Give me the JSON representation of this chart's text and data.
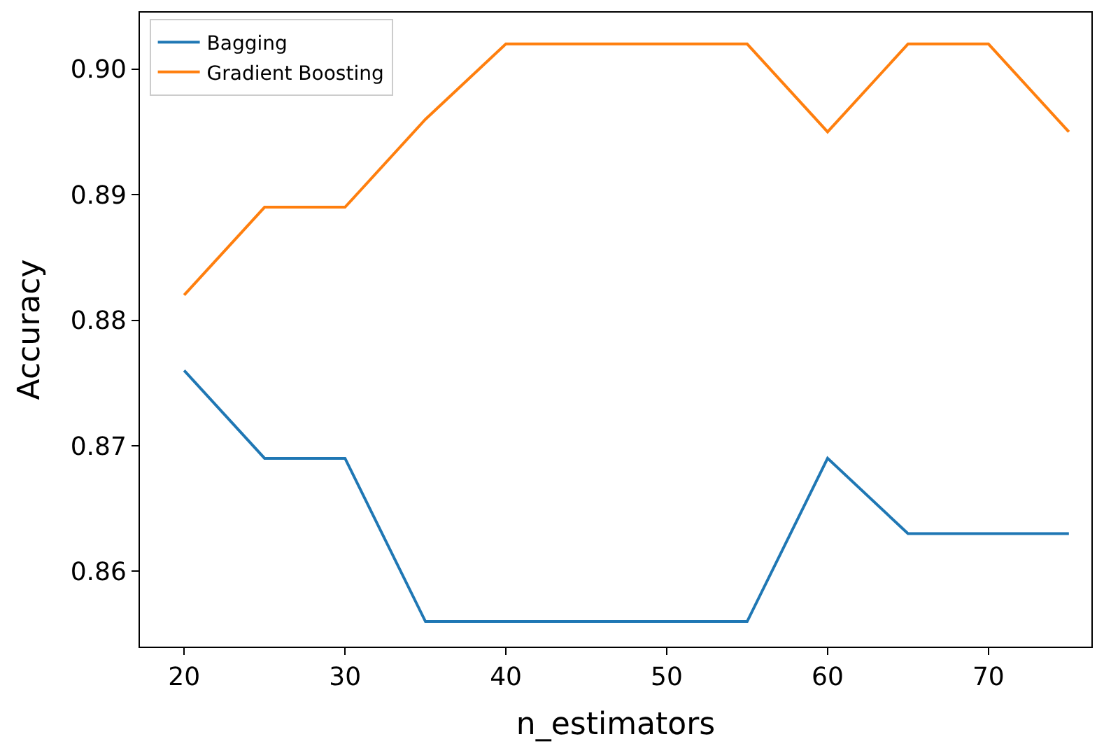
{
  "chart_data": {
    "type": "line",
    "xlabel": "n_estimators",
    "ylabel": "Accuracy",
    "x": [
      20,
      25,
      30,
      35,
      40,
      45,
      50,
      55,
      60,
      65,
      70,
      75
    ],
    "series": [
      {
        "name": "Bagging",
        "color": "#1f77b4",
        "values": [
          0.876,
          0.869,
          0.869,
          0.856,
          0.856,
          0.856,
          0.856,
          0.856,
          0.869,
          0.863,
          0.863,
          0.863
        ]
      },
      {
        "name": "Gradient Boosting",
        "color": "#ff7f0e",
        "values": [
          0.882,
          0.889,
          0.889,
          0.896,
          0.902,
          0.902,
          0.902,
          0.902,
          0.895,
          0.902,
          0.902,
          0.895
        ]
      }
    ],
    "xlim": [
      17.25,
      76.4
    ],
    "ylim": [
      0.854,
      0.9045
    ],
    "xticks": [
      20,
      30,
      40,
      50,
      60,
      70
    ],
    "yticks": [
      {
        "value": 0.86,
        "label": "0.86"
      },
      {
        "value": 0.87,
        "label": "0.87"
      },
      {
        "value": 0.88,
        "label": "0.88"
      },
      {
        "value": 0.89,
        "label": "0.89"
      },
      {
        "value": 0.9,
        "label": "0.90"
      }
    ],
    "legend": "top left",
    "marker": "none",
    "line_style": "solid"
  }
}
